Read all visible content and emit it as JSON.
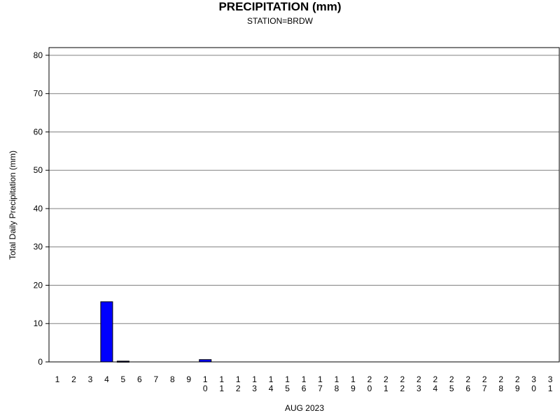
{
  "chart_data": {
    "type": "bar",
    "title": "PRECIPITATION (mm)",
    "subtitle": "STATION=BRDW",
    "xlabel": "AUG 2023",
    "ylabel": "Total Daily Precipitation (mm)",
    "ylim": [
      0,
      82
    ],
    "yticks": [
      0,
      10,
      20,
      30,
      40,
      50,
      60,
      70,
      80
    ],
    "categories": [
      "1",
      "2",
      "3",
      "4",
      "5",
      "6",
      "7",
      "8",
      "9",
      "10",
      "11",
      "12",
      "13",
      "14",
      "15",
      "16",
      "17",
      "18",
      "19",
      "20",
      "21",
      "22",
      "23",
      "24",
      "25",
      "26",
      "27",
      "28",
      "29",
      "30",
      "31"
    ],
    "values": [
      0,
      0,
      0,
      15.7,
      0.2,
      0,
      0,
      0,
      0,
      0.6,
      0,
      0,
      0,
      0,
      0,
      0,
      0,
      0,
      0,
      0,
      0,
      0,
      0,
      0,
      0,
      0,
      0,
      0,
      0,
      0,
      0
    ],
    "bar_color": "#0000ff",
    "grid": true
  }
}
